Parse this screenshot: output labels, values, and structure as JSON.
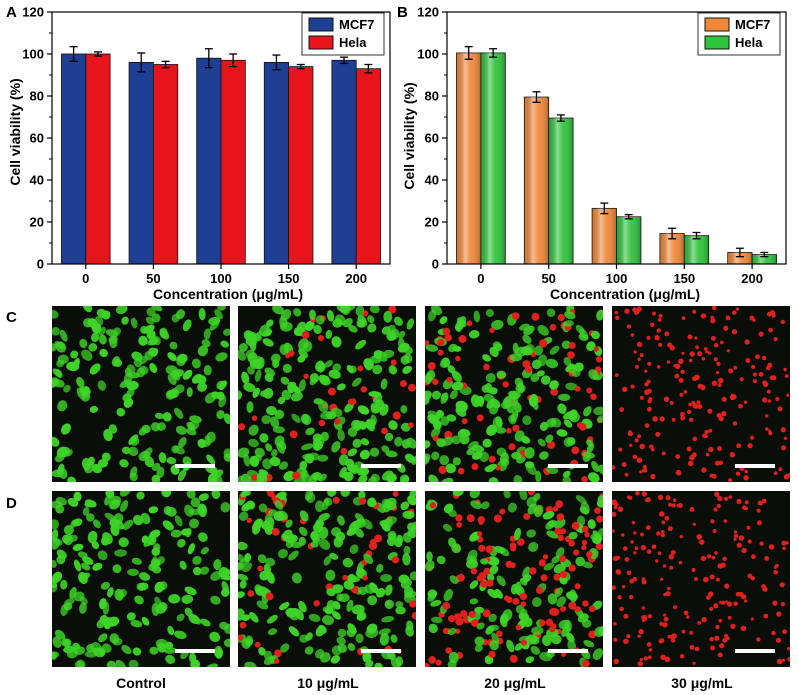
{
  "panel_labels": {
    "a": "A",
    "b": "B",
    "c": "C",
    "d": "D"
  },
  "colors": {
    "mcf7_a": "#1f3f95",
    "hela_a": "#e8141c",
    "mcf7_b": "#f0883a",
    "hela_b": "#2fc33c",
    "live_cell": "#3ed428",
    "dead_cell": "#e0201c",
    "image_bg": "#0a0e08"
  },
  "chart_data": [
    {
      "id": "A",
      "type": "bar",
      "categories": [
        "0",
        "50",
        "100",
        "150",
        "200"
      ],
      "series": [
        {
          "name": "MCF7",
          "values": [
            100,
            96,
            98,
            96,
            97
          ],
          "errors": [
            3.5,
            4.5,
            4.5,
            3.5,
            1.5
          ]
        },
        {
          "name": "Hela",
          "values": [
            100,
            95,
            97,
            94,
            93
          ],
          "errors": [
            1,
            1.5,
            3,
            1,
            2
          ]
        }
      ],
      "xlabel": "Concentration (μg/mL)",
      "ylabel": "Cell viability (%)",
      "ylim": [
        0,
        120
      ],
      "yticks": [
        "0",
        "20",
        "40",
        "60",
        "80",
        "100",
        "120"
      ],
      "legend": "top-right"
    },
    {
      "id": "B",
      "type": "bar",
      "categories": [
        "0",
        "50",
        "100",
        "150",
        "200"
      ],
      "series": [
        {
          "name": "MCF7",
          "values": [
            100.5,
            79.5,
            26.5,
            14.5,
            5.5
          ],
          "errors": [
            3,
            2.5,
            2.5,
            2.5,
            2
          ]
        },
        {
          "name": "Hela",
          "values": [
            100.5,
            69.5,
            22.5,
            13.5,
            4.5
          ],
          "errors": [
            2,
            1.5,
            1,
            1.5,
            1
          ]
        }
      ],
      "xlabel": "Concentration (μg/mL)",
      "ylabel": "Cell viability (%)",
      "ylim": [
        0,
        120
      ],
      "yticks": [
        "0",
        "20",
        "40",
        "60",
        "80",
        "100",
        "120"
      ],
      "legend": "top-right"
    }
  ],
  "micrographs": {
    "captions": [
      "Control",
      "10 μg/mL",
      "20 μg/mL",
      "30 μg/mL"
    ],
    "row_c_dead_fraction": [
      0,
      0.12,
      0.3,
      1
    ],
    "row_d_dead_fraction": [
      0,
      0.18,
      0.42,
      1
    ]
  }
}
